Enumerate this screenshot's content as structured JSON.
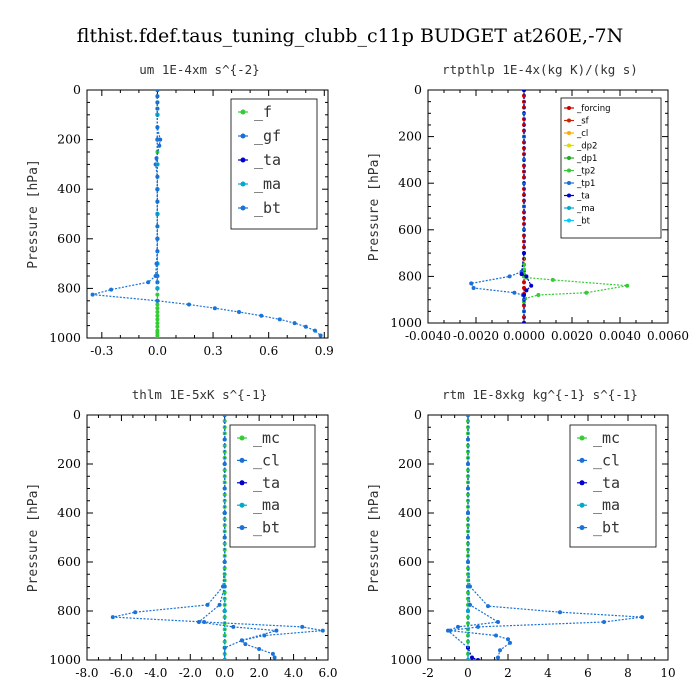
{
  "figure": {
    "title": "flthist.fdef.taus_tuning_clubb_c11p  BUDGET at260E,-7N"
  },
  "chart_data": [
    {
      "type": "line",
      "title": "um   1E-4xm s^{-2}",
      "ylabel": "Pressure [hPa]",
      "xlim": [
        -0.38,
        0.92
      ],
      "ylim": [
        1000,
        0
      ],
      "xticks": [
        -0.3,
        0.0,
        0.3,
        0.6,
        0.9
      ],
      "xtick_labels": [
        "-0.3",
        "0.0",
        "0.3",
        "0.6",
        "0.9"
      ],
      "yticks": [
        0,
        200,
        400,
        600,
        800,
        1000
      ],
      "ytick_labels": [
        "0",
        "200",
        "400",
        "600",
        "800",
        "1000"
      ],
      "legend_style": "large",
      "series": [
        {
          "name": "_f",
          "color": "#33cc33",
          "x": [
            0,
            0,
            0,
            0,
            0,
            0,
            0,
            0,
            0,
            0,
            0,
            0,
            0,
            0,
            0,
            0,
            0,
            0,
            0,
            0,
            0,
            0,
            0,
            0,
            0,
            0,
            0,
            0,
            0,
            0,
            0,
            0,
            0
          ],
          "y": [
            0,
            25,
            50,
            75,
            100,
            150,
            200,
            250,
            300,
            350,
            400,
            450,
            500,
            550,
            600,
            650,
            700,
            750,
            775,
            800,
            825,
            850,
            865,
            880,
            895,
            910,
            925,
            940,
            955,
            970,
            980,
            990,
            1000
          ]
        },
        {
          "name": "_gf",
          "color": "#1a6fd6",
          "x": [
            0,
            0,
            0,
            0,
            0,
            0,
            0.015,
            0.01,
            -0.005,
            -0.01,
            0,
            0,
            0,
            0,
            0,
            0,
            0,
            0,
            0,
            0
          ],
          "y": [
            0,
            25,
            50,
            75,
            100,
            150,
            200,
            225,
            275,
            300,
            350,
            400,
            450,
            500,
            550,
            600,
            650,
            700,
            750,
            775
          ]
        },
        {
          "name": "_ta",
          "color": "#0000cc",
          "x": [
            0,
            0,
            0,
            0,
            0,
            0,
            0,
            0,
            0
          ],
          "y": [
            0,
            100,
            200,
            300,
            400,
            500,
            600,
            700,
            800
          ]
        },
        {
          "name": "_ma",
          "color": "#00aacc",
          "x": [
            0,
            0,
            0,
            0,
            0,
            0,
            0,
            0,
            0
          ],
          "y": [
            0,
            100,
            200,
            300,
            400,
            500,
            600,
            700,
            800
          ]
        },
        {
          "name": "_bt",
          "color": "#1a73d9",
          "x": [
            0,
            0,
            0,
            0,
            -0.005,
            -0.01,
            -0.05,
            -0.25,
            -0.35,
            0.0,
            0.17,
            0.31,
            0.44,
            0.56,
            0.66,
            0.74,
            0.8,
            0.85,
            0.88
          ],
          "y": [
            0,
            200,
            400,
            600,
            700,
            750,
            775,
            805,
            825,
            850,
            865,
            880,
            895,
            910,
            925,
            940,
            955,
            970,
            990
          ]
        }
      ]
    },
    {
      "type": "line",
      "title": "rtpthlp   1E-4x(kg K)/(kg s)",
      "ylabel": "Pressure [hPa]",
      "xlim": [
        -0.004,
        0.006
      ],
      "ylim": [
        1000,
        0
      ],
      "xticks": [
        -0.004,
        -0.002,
        0.0,
        0.002,
        0.004,
        0.006
      ],
      "xtick_labels": [
        "-0.0040",
        "-0.0020",
        "0.0000",
        "0.0020",
        "0.0040",
        "0.0060"
      ],
      "yticks": [
        0,
        200,
        400,
        600,
        800,
        1000
      ],
      "ytick_labels": [
        "0",
        "200",
        "400",
        "600",
        "800",
        "1000"
      ],
      "legend_style": "small",
      "series": [
        {
          "name": "_forcing",
          "color": "#cc0000",
          "x": [
            0,
            0,
            0,
            0,
            0,
            0,
            0,
            0,
            0,
            0,
            0,
            0,
            0,
            0,
            0,
            0,
            0,
            0,
            0,
            0,
            0,
            0,
            0,
            0,
            0,
            0,
            0,
            0,
            0,
            0,
            0,
            0,
            0,
            0,
            0,
            0,
            0,
            0,
            0,
            0,
            0
          ],
          "y": [
            0,
            25,
            50,
            75,
            100,
            125,
            150,
            175,
            200,
            225,
            250,
            275,
            300,
            325,
            350,
            375,
            400,
            425,
            450,
            475,
            500,
            525,
            550,
            575,
            600,
            625,
            650,
            675,
            700,
            725,
            750,
            775,
            800,
            825,
            850,
            875,
            900,
            925,
            950,
            975,
            1000
          ]
        },
        {
          "name": "_sf",
          "color": "#cc2200",
          "x": [],
          "y": []
        },
        {
          "name": "_cl",
          "color": "#ffaa00",
          "x": [],
          "y": []
        },
        {
          "name": "_dp2",
          "color": "#dddd00",
          "x": [],
          "y": []
        },
        {
          "name": "_dp1",
          "color": "#22aa22",
          "x": [],
          "y": []
        },
        {
          "name": "_tp2",
          "color": "#33cc33",
          "x": [
            0,
            0,
            0,
            0,
            0,
            0,
            0,
            0,
            0,
            0,
            0,
            0,
            0.0001,
            0.0012,
            0.0043,
            0.0026,
            0.0006,
            5e-05,
            0,
            0,
            0
          ],
          "y": [
            0,
            100,
            200,
            300,
            400,
            500,
            600,
            700,
            750,
            770,
            790,
            800,
            805,
            815,
            840,
            870,
            880,
            895,
            910,
            950,
            1000
          ]
        },
        {
          "name": "_tp1",
          "color": "#1a6fd6",
          "x": [
            0,
            0,
            0,
            0,
            0,
            0,
            0,
            0,
            -0.0001,
            -0.0006,
            -0.0022,
            -0.0021,
            -0.0004,
            -5e-05,
            0,
            0,
            0
          ],
          "y": [
            0,
            100,
            200,
            300,
            400,
            500,
            600,
            700,
            780,
            800,
            830,
            850,
            870,
            880,
            900,
            950,
            1000
          ]
        },
        {
          "name": "_ta",
          "color": "#0000cc",
          "x": [
            0,
            0,
            -0.0001,
            0.0001,
            0.0003,
            0.0001,
            0,
            0
          ],
          "y": [
            0,
            700,
            790,
            800,
            840,
            860,
            880,
            1000
          ]
        },
        {
          "name": "_ma",
          "color": "#00aacc",
          "x": [],
          "y": []
        },
        {
          "name": "_bt",
          "color": "#00ccff",
          "x": [],
          "y": []
        }
      ]
    },
    {
      "type": "line",
      "title": "thlm   1E-5xK s^{-1}",
      "ylabel": "Pressure [hPa]",
      "xlim": [
        -8.0,
        6.0
      ],
      "ylim": [
        1000,
        0
      ],
      "xticks": [
        -8,
        -6,
        -4,
        -2,
        0,
        2,
        4,
        6
      ],
      "xtick_labels": [
        "-8.0",
        "-6.0",
        "-4.0",
        "-2.0",
        "0.0",
        "2.0",
        "4.0",
        "6.0"
      ],
      "yticks": [
        0,
        200,
        400,
        600,
        800,
        1000
      ],
      "ytick_labels": [
        "0",
        "200",
        "400",
        "600",
        "800",
        "1000"
      ],
      "legend_style": "large",
      "series": [
        {
          "name": "_mc",
          "color": "#33cc33",
          "x": [
            0,
            0,
            0,
            0,
            0,
            0,
            0,
            0,
            0,
            0,
            0,
            0,
            0,
            0,
            0,
            0,
            0,
            0,
            0,
            0,
            0,
            0,
            0,
            0,
            0,
            0,
            0,
            0,
            0,
            0,
            0,
            0,
            0,
            0,
            0,
            0,
            0,
            0,
            0,
            0,
            0
          ],
          "y": [
            0,
            25,
            50,
            75,
            100,
            125,
            150,
            175,
            200,
            225,
            250,
            275,
            300,
            325,
            350,
            375,
            400,
            425,
            450,
            475,
            500,
            525,
            550,
            575,
            600,
            625,
            650,
            675,
            700,
            725,
            750,
            775,
            800,
            825,
            850,
            875,
            900,
            925,
            950,
            975,
            1000
          ]
        },
        {
          "name": "_cl",
          "color": "#1a6fd6",
          "x": [
            0,
            0,
            0,
            0,
            0,
            0,
            0,
            0,
            -0.3,
            -1.5,
            0.5,
            3,
            1,
            0,
            0
          ],
          "y": [
            0,
            100,
            200,
            300,
            400,
            500,
            600,
            700,
            775,
            845,
            865,
            880,
            920,
            950,
            1000
          ]
        },
        {
          "name": "_ta",
          "color": "#0000cc",
          "x": [
            0,
            0,
            0,
            0
          ],
          "y": [
            0,
            400,
            800,
            1000
          ]
        },
        {
          "name": "_ma",
          "color": "#00aacc",
          "x": [
            0,
            0,
            0,
            0
          ],
          "y": [
            0,
            400,
            800,
            1000
          ]
        },
        {
          "name": "_bt",
          "color": "#1a73d9",
          "x": [
            0,
            0,
            0,
            0,
            -0.1,
            -1.0,
            -5.2,
            -6.5,
            -1.2,
            4.5,
            5.7,
            2.3,
            1.0,
            1.2,
            2.0,
            2.8,
            2.9
          ],
          "y": [
            0,
            200,
            400,
            600,
            700,
            775,
            805,
            825,
            845,
            865,
            880,
            900,
            920,
            935,
            955,
            975,
            990
          ]
        }
      ]
    },
    {
      "type": "line",
      "title": "rtm   1E-8xkg kg^{-1} s^{-1}",
      "ylabel": "Pressure [hPa]",
      "xlim": [
        -2,
        10
      ],
      "ylim": [
        1000,
        0
      ],
      "xticks": [
        -2,
        0,
        2,
        4,
        6,
        8,
        10
      ],
      "xtick_labels": [
        "-2",
        "0",
        "2",
        "4",
        "6",
        "8",
        "10"
      ],
      "yticks": [
        0,
        200,
        400,
        600,
        800,
        1000
      ],
      "ytick_labels": [
        "0",
        "200",
        "400",
        "600",
        "800",
        "1000"
      ],
      "legend_style": "large",
      "series": [
        {
          "name": "_mc",
          "color": "#33cc33",
          "x": [
            0,
            0,
            0,
            0,
            0,
            0,
            0,
            0,
            0,
            0,
            0,
            0,
            0,
            0,
            0,
            0,
            0,
            0,
            0,
            0,
            0,
            0,
            0,
            0,
            0,
            0,
            0,
            0,
            0,
            0,
            0,
            0,
            0,
            0,
            0,
            0,
            0,
            0,
            0,
            0,
            0
          ],
          "y": [
            0,
            25,
            50,
            75,
            100,
            125,
            150,
            175,
            200,
            225,
            250,
            275,
            300,
            325,
            350,
            375,
            400,
            425,
            450,
            475,
            500,
            525,
            550,
            575,
            600,
            625,
            650,
            675,
            700,
            725,
            750,
            775,
            800,
            825,
            850,
            875,
            900,
            925,
            950,
            975,
            1000
          ]
        },
        {
          "name": "_cl",
          "color": "#1a6fd6",
          "x": [
            0,
            0,
            0,
            0,
            0,
            0,
            0,
            0,
            0.1,
            1.5,
            -0.5,
            -1,
            0,
            0
          ],
          "y": [
            0,
            100,
            200,
            300,
            400,
            500,
            600,
            700,
            775,
            845,
            865,
            880,
            950,
            1000
          ]
        },
        {
          "name": "_ta",
          "color": "#0000cc",
          "x": [
            0,
            0,
            0,
            0,
            0.2,
            0.5
          ],
          "y": [
            0,
            400,
            800,
            950,
            990,
            1000
          ]
        },
        {
          "name": "_ma",
          "color": "#00aacc",
          "x": [
            0,
            0,
            0,
            0
          ],
          "y": [
            0,
            400,
            800,
            1000
          ]
        },
        {
          "name": "_bt",
          "color": "#1a73d9",
          "x": [
            0,
            0,
            0,
            0,
            0.1,
            1.0,
            4.6,
            8.7,
            6.8,
            0.5,
            -0.9,
            1.4,
            2.0,
            2.1,
            1.6,
            1.5
          ],
          "y": [
            0,
            200,
            400,
            600,
            700,
            780,
            805,
            825,
            845,
            865,
            880,
            900,
            915,
            930,
            960,
            990
          ]
        }
      ]
    }
  ]
}
